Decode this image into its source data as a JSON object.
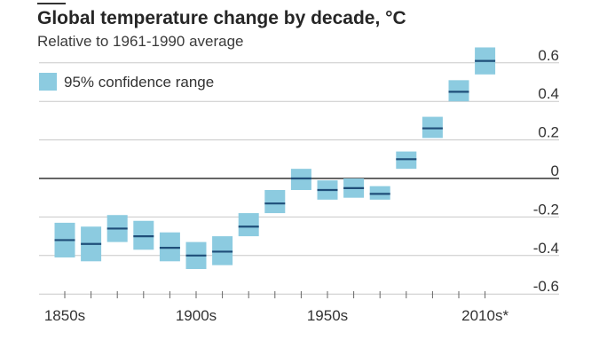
{
  "chart_data": {
    "type": "box",
    "title": "Global temperature change by decade, °C",
    "subtitle": "Relative to 1961-1990 average",
    "legend": {
      "label": "95% confidence range",
      "placement": "top-left",
      "color": "#8ccbe0"
    },
    "colors": {
      "box": "#8ccbe0",
      "median": "#1f4e79",
      "grid": "#c8c8c8",
      "zero_line": "#333333",
      "text": "#333333"
    },
    "x_tick_labels": [
      "1850s",
      "1900s",
      "1950s",
      "2010s*"
    ],
    "y_ticks": [
      0.6,
      0.4,
      0.2,
      0,
      -0.2,
      -0.4,
      -0.6
    ],
    "y_tick_labels": [
      "0.6",
      "0.4",
      "0.2",
      "0",
      "-0.2",
      "-0.4",
      "-0.6"
    ],
    "ylim": [
      -0.65,
      0.65
    ],
    "grid": true,
    "series": [
      {
        "decades": [
          "1850s",
          "1860s",
          "1870s",
          "1880s",
          "1890s",
          "1900s",
          "1910s",
          "1920s",
          "1930s",
          "1940s",
          "1950s",
          "1960s",
          "1970s",
          "1980s",
          "1990s",
          "2000s",
          "2010s*"
        ],
        "central": [
          -0.32,
          -0.34,
          -0.26,
          -0.3,
          -0.36,
          -0.4,
          -0.38,
          -0.25,
          -0.13,
          0.0,
          -0.06,
          -0.05,
          -0.08,
          0.1,
          0.26,
          0.45,
          0.61
        ],
        "low": [
          -0.41,
          -0.43,
          -0.33,
          -0.37,
          -0.43,
          -0.47,
          -0.45,
          -0.3,
          -0.18,
          -0.06,
          -0.11,
          -0.1,
          -0.11,
          0.05,
          0.21,
          0.4,
          0.54
        ],
        "high": [
          -0.23,
          -0.25,
          -0.19,
          -0.22,
          -0.28,
          -0.33,
          -0.3,
          -0.18,
          -0.06,
          0.05,
          -0.01,
          -0.0,
          -0.04,
          0.14,
          0.32,
          0.51,
          0.68
        ]
      }
    ]
  }
}
